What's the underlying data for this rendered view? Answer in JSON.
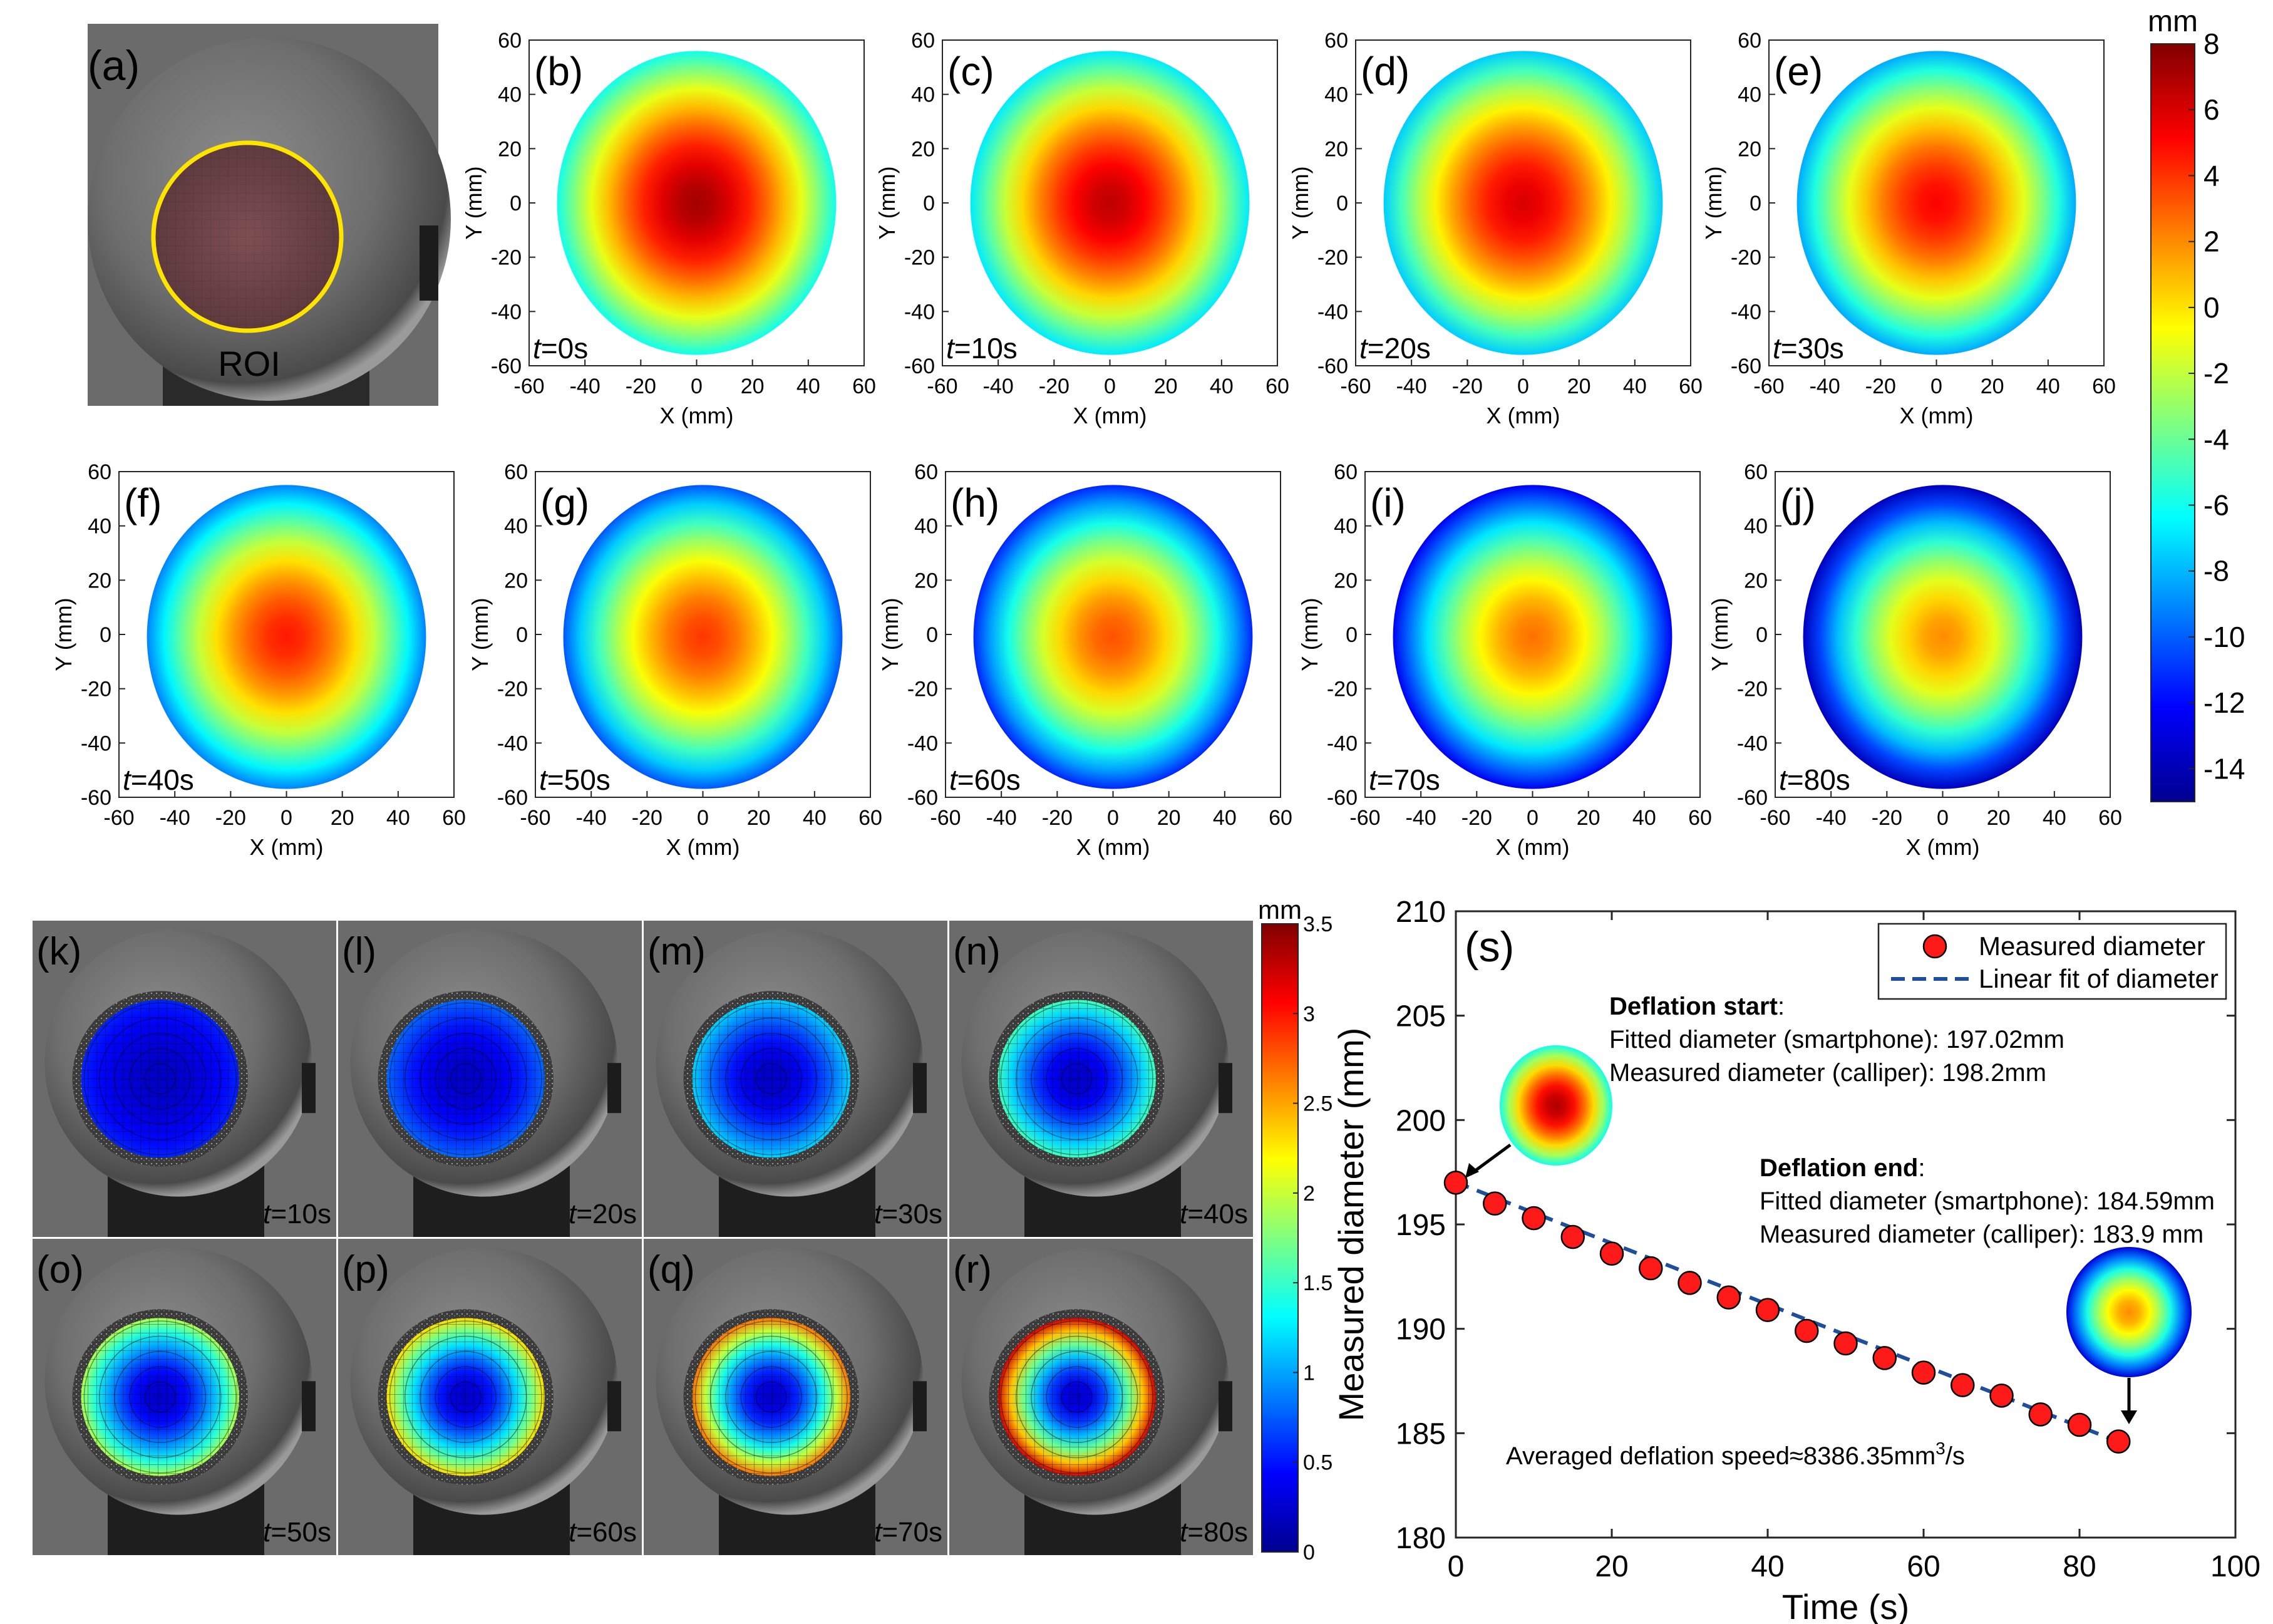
{
  "colors": {
    "plot_bg": "#ffffff",
    "axis": "#262626",
    "marker_fill": "#ff1a1a",
    "fit_line": "#1f4e9c",
    "photo_bg": "#6b6b6b",
    "roi_circle": "#ffe400",
    "roi_fill": "#7a4a4e"
  },
  "panel_a": {
    "label": "(a)",
    "roi_label": "ROI"
  },
  "maps": {
    "xlabel": "X (mm)",
    "ylabel": "Y (mm)",
    "xticks": [
      "-60",
      "-40",
      "-20",
      "0",
      "20",
      "40",
      "60"
    ],
    "yticks": [
      "60",
      "40",
      "20",
      "0",
      "-20",
      "-40",
      "-60"
    ],
    "panels": [
      {
        "label": "(b)",
        "time_prefix": "t",
        "time_suffix": "=0s",
        "center_val": 7.2,
        "edge_val": -6.0
      },
      {
        "label": "(c)",
        "time_prefix": "t",
        "time_suffix": "=10s",
        "center_val": 6.6,
        "edge_val": -6.8
      },
      {
        "label": "(d)",
        "time_prefix": "t",
        "time_suffix": "=20s",
        "center_val": 6.0,
        "edge_val": -7.5
      },
      {
        "label": "(e)",
        "time_prefix": "t",
        "time_suffix": "=30s",
        "center_val": 5.2,
        "edge_val": -8.3
      },
      {
        "label": "(f)",
        "time_prefix": "t",
        "time_suffix": "=40s",
        "center_val": 4.6,
        "edge_val": -9.2
      },
      {
        "label": "(g)",
        "time_prefix": "t",
        "time_suffix": "=50s",
        "center_val": 3.9,
        "edge_val": -10.2
      },
      {
        "label": "(h)",
        "time_prefix": "t",
        "time_suffix": "=60s",
        "center_val": 3.3,
        "edge_val": -11.3
      },
      {
        "label": "(i)",
        "time_prefix": "t",
        "time_suffix": "=70s",
        "center_val": 2.6,
        "edge_val": -12.4
      },
      {
        "label": "(j)",
        "time_prefix": "t",
        "time_suffix": "=80s",
        "center_val": 2.0,
        "edge_val": -13.6
      }
    ]
  },
  "colorbar_main": {
    "unit": "mm",
    "ticks": [
      "8",
      "6",
      "4",
      "2",
      "0",
      "-2",
      "-4",
      "-6",
      "-8",
      "-10",
      "-12",
      "-14"
    ],
    "range": [
      -15,
      8
    ]
  },
  "photo_panels": {
    "panels": [
      {
        "label": "(k)",
        "time_prefix": "t",
        "time_suffix": "=10s",
        "level": 0.35
      },
      {
        "label": "(l)",
        "time_prefix": "t",
        "time_suffix": "=20s",
        "level": 0.6
      },
      {
        "label": "(m)",
        "time_prefix": "t",
        "time_suffix": "=30s",
        "level": 1.0
      },
      {
        "label": "(n)",
        "time_prefix": "t",
        "time_suffix": "=40s",
        "level": 1.4
      },
      {
        "label": "(o)",
        "time_prefix": "t",
        "time_suffix": "=50s",
        "level": 1.8
      },
      {
        "label": "(p)",
        "time_prefix": "t",
        "time_suffix": "=60s",
        "level": 2.2
      },
      {
        "label": "(q)",
        "time_prefix": "t",
        "time_suffix": "=70s",
        "level": 2.6
      },
      {
        "label": "(r)",
        "time_prefix": "t",
        "time_suffix": "=80s",
        "level": 3.2
      }
    ]
  },
  "colorbar_small": {
    "unit": "mm",
    "ticks": [
      "3.5",
      "3",
      "2.5",
      "2",
      "1.5",
      "1",
      "0.5",
      "0"
    ],
    "range": [
      0,
      3.5
    ]
  },
  "chart_data": {
    "type": "scatter",
    "panel_label": "(s)",
    "title": "",
    "xlabel": "Time (s)",
    "ylabel": "Measured diameter (mm)",
    "xlim": [
      0,
      100
    ],
    "ylim": [
      180,
      210
    ],
    "xticks": [
      "0",
      "20",
      "40",
      "60",
      "80",
      "100"
    ],
    "yticks": [
      "210",
      "205",
      "200",
      "195",
      "190",
      "185",
      "180"
    ],
    "legend_position": "top-right",
    "series": [
      {
        "name": "Measured diameter",
        "x": [
          0,
          5,
          10,
          15,
          20,
          25,
          30,
          35,
          40,
          45,
          50,
          55,
          60,
          65,
          70,
          75,
          80,
          85
        ],
        "y": [
          197.0,
          196.0,
          195.3,
          194.4,
          193.6,
          192.9,
          192.2,
          191.5,
          190.9,
          189.9,
          189.3,
          188.6,
          187.9,
          187.3,
          186.8,
          185.9,
          185.4,
          184.6
        ]
      },
      {
        "name": "Linear fit of diameter",
        "x": [
          0,
          85
        ],
        "y": [
          197.02,
          184.59
        ]
      }
    ],
    "annotations": {
      "start_title": "Deflation start",
      "start_colon": ":",
      "start_line1": "Fitted diameter (smartphone): 197.02mm",
      "start_line2": "Measured diameter (calliper):  198.2mm",
      "end_title": "Deflation end",
      "end_colon": ":",
      "end_line1": "Fitted diameter (smartphone): 184.59mm",
      "end_line2": "Measured diameter (calliper): 183.9 mm",
      "speed_text": "Averaged deflation speed≈8386.35mm",
      "speed_sup": "3",
      "speed_unit": "/s"
    }
  }
}
